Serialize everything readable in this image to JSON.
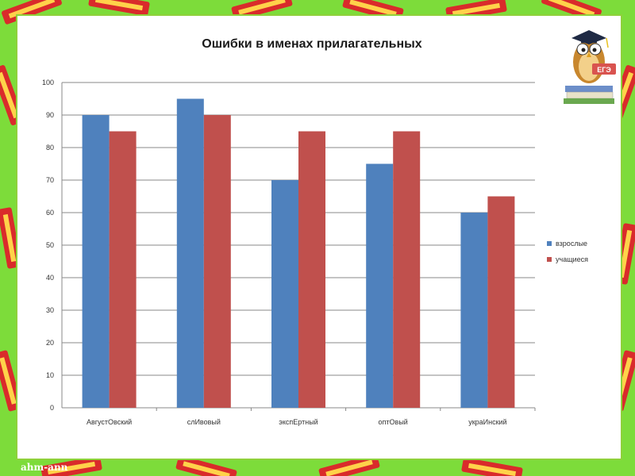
{
  "badge_text": "ЕГЭ",
  "credit": "ahm-ann",
  "chart_data": {
    "type": "bar",
    "title": "Ошибки в именах прилагательных",
    "categories": [
      "АвгустОвский",
      "слИвовый",
      "экспЕртный",
      "оптОвый",
      "украИнский"
    ],
    "series": [
      {
        "name": "взрослые",
        "values": [
          90,
          95,
          70,
          75,
          60
        ],
        "color": "#4f81bd"
      },
      {
        "name": "учащиеся",
        "values": [
          85,
          90,
          85,
          85,
          65
        ],
        "color": "#c0504d"
      }
    ],
    "ylim": [
      0,
      100
    ],
    "yticks": [
      0,
      10,
      20,
      30,
      40,
      50,
      60,
      70,
      80,
      90,
      100
    ],
    "grid": true,
    "legend": "right"
  }
}
